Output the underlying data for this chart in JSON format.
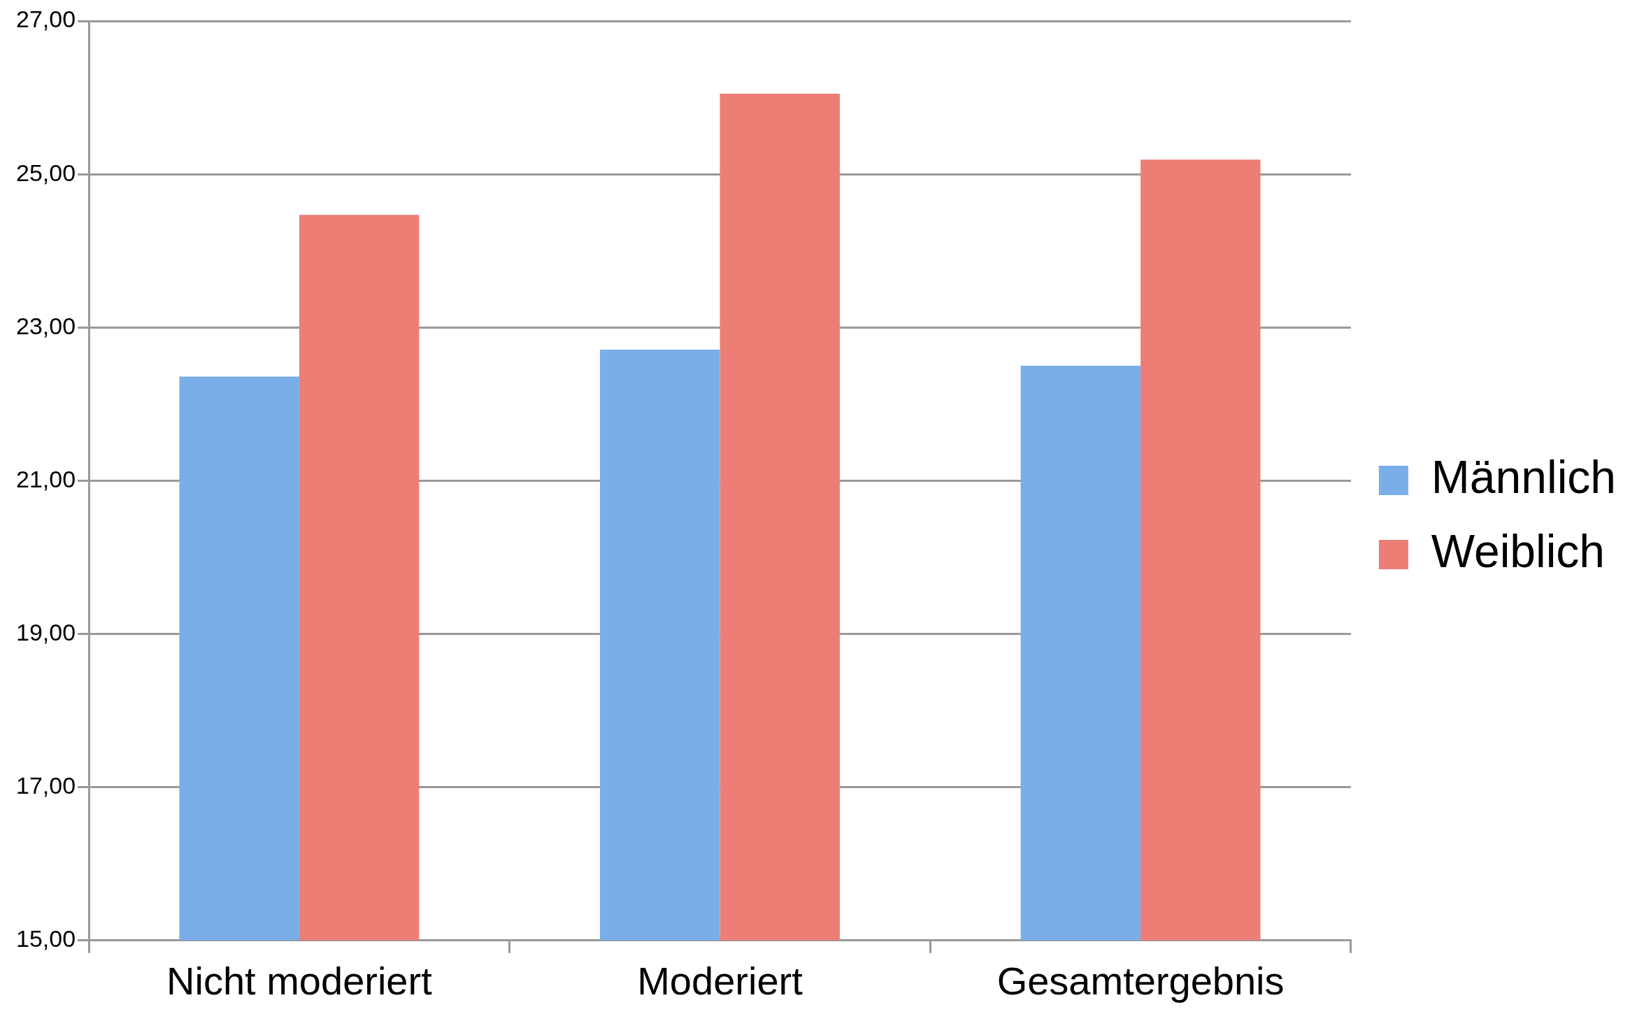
{
  "chart_data": {
    "type": "bar",
    "categories": [
      "Nicht moderiert",
      "Moderiert",
      "Gesamtergebnis"
    ],
    "series": [
      {
        "name": "Männlich",
        "color": "#7aaee8",
        "values": [
          22.36,
          22.71,
          22.5
        ]
      },
      {
        "name": "Weiblich",
        "color": "#ec7e76",
        "values": [
          24.47,
          26.05,
          25.19
        ]
      }
    ],
    "ylim": [
      15,
      27
    ],
    "yticks": [
      {
        "value": 15,
        "label": "15,00"
      },
      {
        "value": 17,
        "label": "17,00"
      },
      {
        "value": 19,
        "label": "19,00"
      },
      {
        "value": 21,
        "label": "21,00"
      },
      {
        "value": 23,
        "label": "23,00"
      },
      {
        "value": 25,
        "label": "25,00"
      },
      {
        "value": 27,
        "label": "27,00"
      }
    ],
    "grid": "y",
    "legend": "right"
  }
}
